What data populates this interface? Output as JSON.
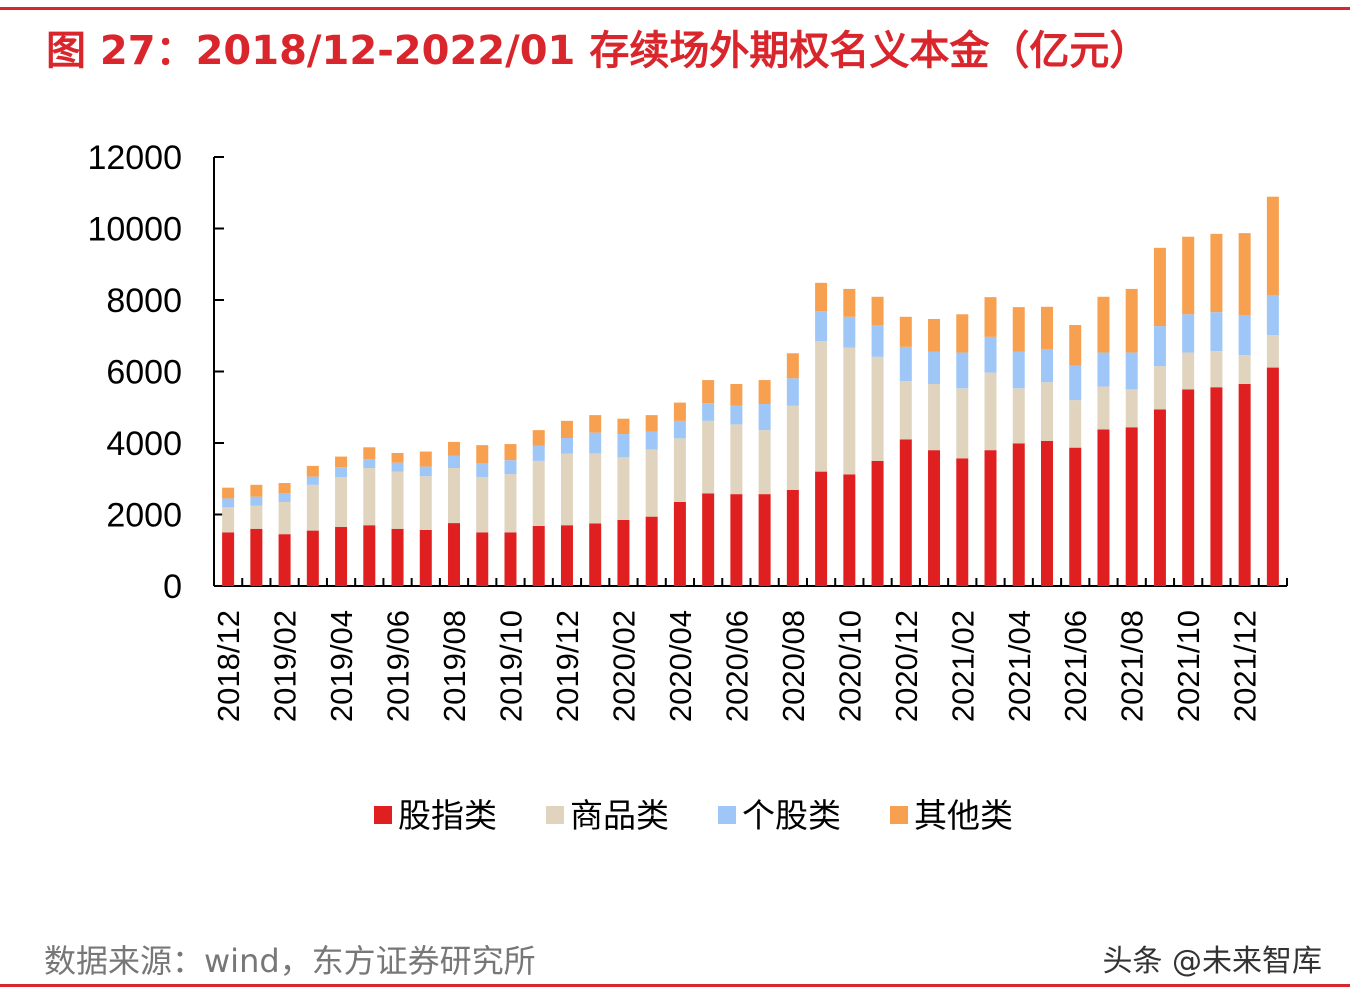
{
  "title": "图 27：2018/12-2022/01 存续场外期权名义本金（亿元）",
  "source": "数据来源：wind，东方证券研究所",
  "watermark": "头条 @未来智库",
  "chart_data": {
    "type": "bar",
    "stacked": true,
    "title": "",
    "xlabel": "",
    "ylabel": "",
    "ylim": [
      0,
      12000
    ],
    "yticks": [
      "0",
      "2000",
      "4000",
      "6000",
      "8000",
      "10000",
      "12000"
    ],
    "grid": false,
    "legend_position": "bottom",
    "categories": [
      "2018/12",
      "2019/01",
      "2019/02",
      "2019/03",
      "2019/04",
      "2019/05",
      "2019/06",
      "2019/07",
      "2019/08",
      "2019/09",
      "2019/10",
      "2019/11",
      "2019/12",
      "2020/01",
      "2020/02",
      "2020/03",
      "2020/04",
      "2020/05",
      "2020/06",
      "2020/07",
      "2020/08",
      "2020/09",
      "2020/10",
      "2020/11",
      "2020/12",
      "2021/01",
      "2021/02",
      "2021/03",
      "2021/04",
      "2021/05",
      "2021/06",
      "2021/07",
      "2021/08",
      "2021/09",
      "2021/10",
      "2021/11",
      "2021/12",
      "2022/01"
    ],
    "tick_labels": [
      "2018/12",
      "2019/02",
      "2019/04",
      "2019/06",
      "2019/08",
      "2019/10",
      "2019/12",
      "2020/02",
      "2020/04",
      "2020/06",
      "2020/08",
      "2020/10",
      "2020/12",
      "2021/02",
      "2021/04",
      "2021/06",
      "2021/08",
      "2021/10",
      "2021/12"
    ],
    "series": [
      {
        "name": "股指类",
        "color": "#e02020",
        "values": [
          1500,
          1600,
          1450,
          1550,
          1650,
          1700,
          1600,
          1570,
          1760,
          1500,
          1500,
          1680,
          1700,
          1750,
          1850,
          1940,
          2350,
          2590,
          2570,
          2570,
          2690,
          3200,
          3120,
          3500,
          4100,
          3800,
          3570,
          3800,
          3990,
          4060,
          3870,
          4380,
          4440,
          4940,
          5500,
          5560,
          5650,
          6110
        ]
      },
      {
        "name": "商品类",
        "color": "#e0d4bf",
        "values": [
          700,
          650,
          900,
          1280,
          1400,
          1600,
          1600,
          1500,
          1540,
          1550,
          1630,
          1820,
          2000,
          1960,
          1750,
          1880,
          1780,
          2030,
          1950,
          1790,
          2350,
          3650,
          3550,
          2910,
          1630,
          1850,
          1960,
          2170,
          1540,
          1640,
          1330,
          1200,
          1060,
          1210,
          1030,
          1010,
          810,
          910
        ]
      },
      {
        "name": "个股类",
        "color": "#9ec7f7",
        "values": [
          250,
          250,
          250,
          230,
          270,
          250,
          250,
          270,
          340,
          390,
          390,
          420,
          440,
          580,
          650,
          500,
          490,
          490,
          520,
          730,
          770,
          840,
          860,
          890,
          960,
          900,
          1000,
          1000,
          1020,
          930,
          960,
          950,
          1030,
          1120,
          1070,
          1090,
          1120,
          1120
        ]
      },
      {
        "name": "其他类",
        "color": "#f7a050",
        "values": [
          300,
          330,
          280,
          300,
          300,
          330,
          270,
          420,
          390,
          500,
          450,
          440,
          480,
          490,
          430,
          460,
          510,
          650,
          610,
          670,
          700,
          790,
          780,
          790,
          840,
          920,
          1070,
          1110,
          1250,
          1180,
          1140,
          1560,
          1780,
          2190,
          2170,
          2190,
          2290,
          2750
        ]
      }
    ]
  }
}
